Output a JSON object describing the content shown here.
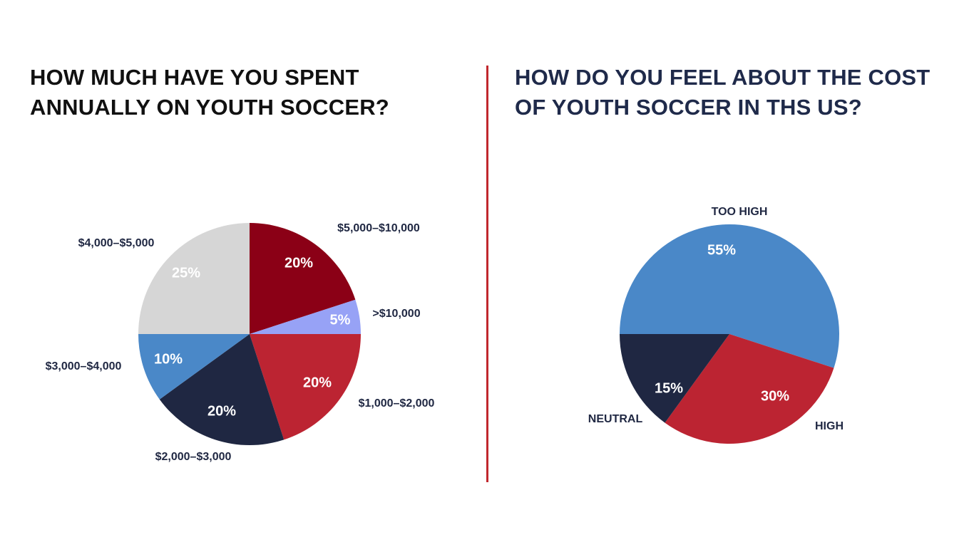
{
  "chart_data": [
    {
      "type": "pie",
      "title": "HOW MUCH HAVE YOU SPENT ANNUALLY ON YOUTH SOCCER?",
      "slices": [
        {
          "label": "$5,000–$10,000",
          "value": 20,
          "value_label": "20%",
          "color": "#8b0016",
          "value_text_color": "#ffffff"
        },
        {
          "label": ">$10,000",
          "value": 5,
          "value_label": "5%",
          "color": "#97a2f6",
          "value_text_color": "#ffffff"
        },
        {
          "label": "$1,000–$2,000",
          "value": 20,
          "value_label": "20%",
          "color": "#bc2432",
          "value_text_color": "#ffffff"
        },
        {
          "label": "$2,000–$3,000",
          "value": 20,
          "value_label": "20%",
          "color": "#1f2742",
          "value_text_color": "#ffffff"
        },
        {
          "label": "$3,000–$4,000",
          "value": 10,
          "value_label": "10%",
          "color": "#4a88c8",
          "value_text_color": "#ffffff"
        },
        {
          "label": "$4,000–$5,000",
          "value": 25,
          "value_label": "25%",
          "color": "#d6d6d6",
          "value_text_color": "#ffffff"
        }
      ]
    },
    {
      "type": "pie",
      "title": "HOW DO YOU FEEL ABOUT THE COST OF YOUTH SOCCER IN THS US?",
      "slices": [
        {
          "label": "TOO HIGH",
          "value": 55,
          "value_label": "55%",
          "color": "#4a88c8",
          "value_text_color": "#ffffff"
        },
        {
          "label": "HIGH",
          "value": 30,
          "value_label": "30%",
          "color": "#bc2432",
          "value_text_color": "#ffffff"
        },
        {
          "label": "NEUTRAL",
          "value": 15,
          "value_label": "15%",
          "color": "#1f2742",
          "value_text_color": "#ffffff"
        }
      ]
    }
  ],
  "colors": {
    "divider": "#c1272d",
    "category_label": "#1f2742",
    "title_left": "#111111",
    "title_right": "#1f2a4a"
  }
}
